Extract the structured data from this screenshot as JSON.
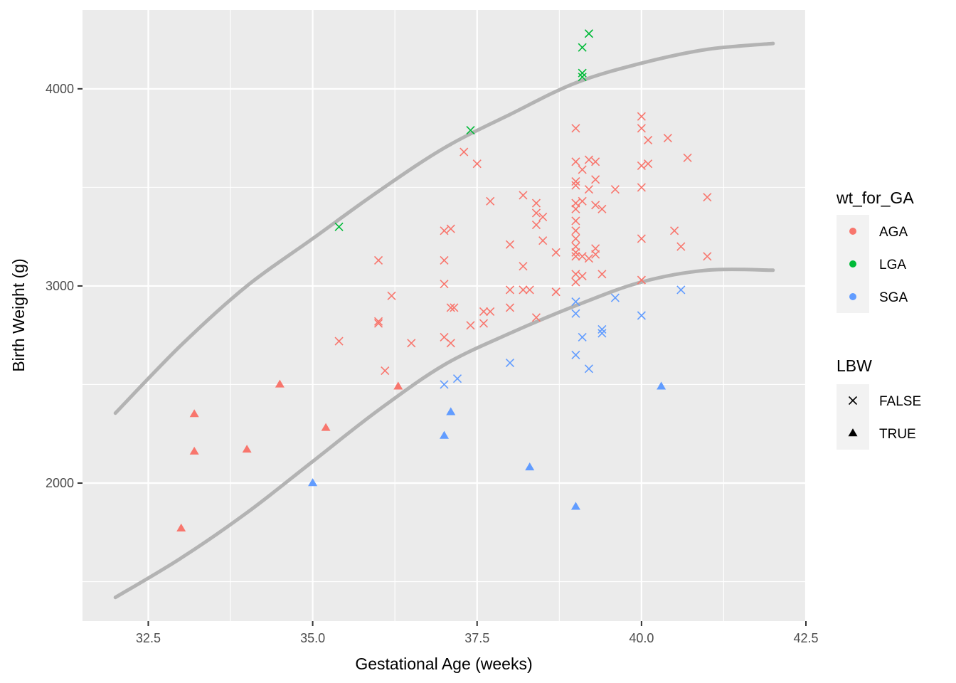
{
  "chart_data": {
    "type": "scatter",
    "title": "",
    "xlabel": "Gestational Age (weeks)",
    "ylabel": "Birth Weight (g)",
    "xlim": [
      31.5,
      42.5
    ],
    "ylim": [
      1300,
      4400
    ],
    "x_ticks": [
      32.5,
      35.0,
      37.5,
      40.0,
      42.5
    ],
    "x_tick_labels": [
      "32.5",
      "35.0",
      "37.5",
      "40.0",
      "42.5"
    ],
    "y_ticks": [
      2000,
      3000,
      4000
    ],
    "y_tick_labels": [
      "2000",
      "3000",
      "4000"
    ],
    "grid": true,
    "legend_position": "right",
    "colors": {
      "AGA": "#F8766D",
      "LGA": "#00BA38",
      "SGA": "#619CFF",
      "curve": "#b3b3b3",
      "panel": "#ebebeb",
      "grid": "#ffffff"
    },
    "legends": [
      {
        "title": "wt_for_GA",
        "kind": "color",
        "entries": [
          "AGA",
          "LGA",
          "SGA"
        ]
      },
      {
        "title": "LBW",
        "kind": "shape",
        "entries": [
          "FALSE",
          "TRUE"
        ]
      }
    ],
    "curves": [
      {
        "points": [
          [
            32.0,
            2355
          ],
          [
            33.0,
            2700
          ],
          [
            34.0,
            3000
          ],
          [
            35.0,
            3240
          ],
          [
            36.0,
            3480
          ],
          [
            37.0,
            3700
          ],
          [
            38.0,
            3870
          ],
          [
            39.0,
            4030
          ],
          [
            40.0,
            4130
          ],
          [
            41.0,
            4200
          ],
          [
            42.0,
            4230
          ]
        ]
      },
      {
        "points": [
          [
            32.0,
            1420
          ],
          [
            33.0,
            1620
          ],
          [
            34.0,
            1850
          ],
          [
            35.0,
            2110
          ],
          [
            36.0,
            2370
          ],
          [
            37.0,
            2600
          ],
          [
            38.0,
            2760
          ],
          [
            39.0,
            2900
          ],
          [
            40.0,
            3020
          ],
          [
            41.0,
            3080
          ],
          [
            42.0,
            3080
          ]
        ]
      }
    ],
    "series": [
      {
        "name": "AGA",
        "lbw": "FALSE",
        "points": [
          [
            35.4,
            2720
          ],
          [
            36.0,
            3130
          ],
          [
            36.0,
            2820
          ],
          [
            36.0,
            2810
          ],
          [
            36.1,
            2570
          ],
          [
            36.2,
            2950
          ],
          [
            36.5,
            2710
          ],
          [
            37.0,
            3280
          ],
          [
            37.1,
            3290
          ],
          [
            37.0,
            3130
          ],
          [
            37.0,
            3010
          ],
          [
            37.1,
            2890
          ],
          [
            37.15,
            2890
          ],
          [
            37.0,
            2740
          ],
          [
            37.1,
            2710
          ],
          [
            37.3,
            3680
          ],
          [
            37.5,
            3620
          ],
          [
            37.7,
            3430
          ],
          [
            37.4,
            2800
          ],
          [
            37.6,
            2870
          ],
          [
            37.7,
            2870
          ],
          [
            37.6,
            2810
          ],
          [
            38.0,
            3210
          ],
          [
            38.0,
            2980
          ],
          [
            38.0,
            2890
          ],
          [
            38.2,
            3460
          ],
          [
            38.2,
            3100
          ],
          [
            38.2,
            2980
          ],
          [
            38.3,
            2980
          ],
          [
            38.4,
            3420
          ],
          [
            38.4,
            3370
          ],
          [
            38.4,
            3310
          ],
          [
            38.4,
            2840
          ],
          [
            38.5,
            3350
          ],
          [
            38.5,
            3230
          ],
          [
            38.7,
            3170
          ],
          [
            38.7,
            2970
          ],
          [
            39.0,
            3800
          ],
          [
            39.0,
            3630
          ],
          [
            39.0,
            3530
          ],
          [
            39.0,
            3510
          ],
          [
            39.0,
            3420
          ],
          [
            39.0,
            3390
          ],
          [
            39.0,
            3330
          ],
          [
            39.0,
            3280
          ],
          [
            39.0,
            3240
          ],
          [
            39.0,
            3200
          ],
          [
            39.0,
            3170
          ],
          [
            39.0,
            3150
          ],
          [
            39.0,
            3060
          ],
          [
            39.0,
            3020
          ],
          [
            39.1,
            3590
          ],
          [
            39.1,
            3430
          ],
          [
            39.1,
            3150
          ],
          [
            39.1,
            3050
          ],
          [
            39.2,
            3640
          ],
          [
            39.2,
            3490
          ],
          [
            39.2,
            3140
          ],
          [
            39.3,
            3630
          ],
          [
            39.3,
            3540
          ],
          [
            39.3,
            3410
          ],
          [
            39.3,
            3190
          ],
          [
            39.3,
            3160
          ],
          [
            39.4,
            3390
          ],
          [
            39.4,
            3060
          ],
          [
            39.6,
            3490
          ],
          [
            40.0,
            3860
          ],
          [
            40.0,
            3800
          ],
          [
            40.0,
            3610
          ],
          [
            40.0,
            3500
          ],
          [
            40.0,
            3240
          ],
          [
            40.0,
            3030
          ],
          [
            40.1,
            3740
          ],
          [
            40.1,
            3620
          ],
          [
            40.4,
            3750
          ],
          [
            40.5,
            3280
          ],
          [
            40.6,
            3200
          ],
          [
            40.7,
            3650
          ],
          [
            41.0,
            3450
          ],
          [
            41.0,
            3150
          ]
        ]
      },
      {
        "name": "AGA",
        "lbw": "TRUE",
        "points": [
          [
            33.0,
            1770
          ],
          [
            33.2,
            2350
          ],
          [
            33.2,
            2160
          ],
          [
            34.0,
            2170
          ],
          [
            34.5,
            2500
          ],
          [
            35.2,
            2280
          ],
          [
            36.3,
            2490
          ]
        ]
      },
      {
        "name": "LGA",
        "lbw": "FALSE",
        "points": [
          [
            35.4,
            3300
          ],
          [
            37.4,
            3790
          ],
          [
            39.1,
            4210
          ],
          [
            39.1,
            4080
          ],
          [
            39.1,
            4060
          ],
          [
            39.2,
            4280
          ]
        ]
      },
      {
        "name": "SGA",
        "lbw": "FALSE",
        "points": [
          [
            37.0,
            2500
          ],
          [
            37.2,
            2530
          ],
          [
            38.0,
            2610
          ],
          [
            39.0,
            2920
          ],
          [
            39.0,
            2860
          ],
          [
            39.0,
            2650
          ],
          [
            39.1,
            2740
          ],
          [
            39.2,
            2580
          ],
          [
            39.4,
            2780
          ],
          [
            39.4,
            2760
          ],
          [
            39.6,
            2940
          ],
          [
            40.0,
            2850
          ],
          [
            40.6,
            2980
          ]
        ]
      },
      {
        "name": "SGA",
        "lbw": "TRUE",
        "points": [
          [
            35.0,
            2000
          ],
          [
            37.0,
            2240
          ],
          [
            37.1,
            2360
          ],
          [
            38.3,
            2080
          ],
          [
            39.0,
            1880
          ],
          [
            40.3,
            2490
          ]
        ]
      }
    ]
  }
}
